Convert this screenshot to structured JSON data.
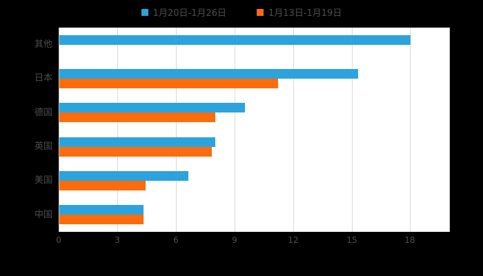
{
  "chart_data": {
    "type": "bar",
    "orientation": "horizontal",
    "title": "",
    "categories": [
      "其他",
      "日本",
      "德国",
      "英国",
      "美国",
      "中国"
    ],
    "series": [
      {
        "name": "1月20日-1月26日",
        "color": "#2CA3DC",
        "values": [
          18,
          15.3,
          9.5,
          8,
          6.6,
          4.3
        ]
      },
      {
        "name": "1月13日-1月19日",
        "color": "#FC6C0C",
        "values": [
          0,
          11.2,
          8,
          7.8,
          4.4,
          4.3
        ]
      }
    ],
    "xlim": [
      0,
      20
    ],
    "xticks": [
      0,
      3,
      6,
      9,
      12,
      15,
      18
    ],
    "grid": true,
    "legend_position": "top"
  },
  "colors": {
    "background": "#000000",
    "plot_background": "#ffffff",
    "gridline": "#d9d9d9",
    "axis_line": "#bfbfbf",
    "text": "#4d4d4d"
  }
}
